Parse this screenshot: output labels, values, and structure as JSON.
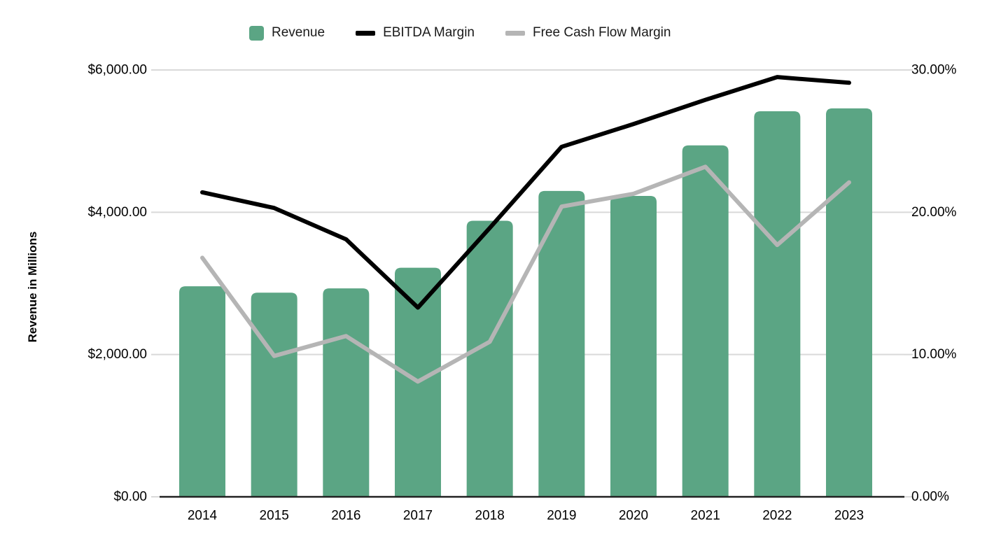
{
  "page": {
    "background": "#ffffff"
  },
  "legend": [
    {
      "label": "Revenue",
      "swatch": "square",
      "color": "#5ba584"
    },
    {
      "label": "EBITDA Margin",
      "swatch": "line",
      "color": "#000000"
    },
    {
      "label": "Free Cash Flow Margin",
      "swatch": "line",
      "color": "#b5b5b5"
    }
  ],
  "axes": {
    "left": {
      "title": "Revenue in Millions",
      "tick_labels": [
        "$6,000.00",
        "$4,000.00",
        "$2,000.00",
        "$0.00"
      ],
      "tick_values": [
        6000,
        4000,
        2000,
        0
      ]
    },
    "right": {
      "tick_labels": [
        "30.00%",
        "20.00%",
        "10.00%",
        "0.00%"
      ],
      "tick_values": [
        30,
        20,
        10,
        0
      ]
    },
    "x": {
      "labels": [
        "2014",
        "2015",
        "2016",
        "2017",
        "2018",
        "2019",
        "2020",
        "2021",
        "2022",
        "2023"
      ]
    }
  },
  "colors": {
    "bar": "#5ba584",
    "ebitda_line": "#000000",
    "fcf_line": "#b5b5b5",
    "gridline": "#d9d9d9",
    "axis_line": "#212121",
    "text": "#000000"
  },
  "chart_data": {
    "type": "combo-bar-line",
    "title": "",
    "categories": [
      "2014",
      "2015",
      "2016",
      "2017",
      "2018",
      "2019",
      "2020",
      "2021",
      "2022",
      "2023"
    ],
    "series": [
      {
        "name": "Revenue",
        "type": "bar",
        "axis": "left",
        "unit": "$ millions",
        "color": "#5ba584",
        "values": [
          2960,
          2870,
          2930,
          3220,
          3880,
          4300,
          4230,
          4940,
          5420,
          5460
        ]
      },
      {
        "name": "EBITDA Margin",
        "type": "line",
        "axis": "right",
        "unit": "%",
        "color": "#000000",
        "values": [
          21.4,
          20.3,
          18.1,
          13.3,
          18.9,
          24.6,
          26.2,
          27.9,
          29.5,
          29.1
        ]
      },
      {
        "name": "Free Cash Flow Margin",
        "type": "line",
        "axis": "right",
        "unit": "%",
        "color": "#b5b5b5",
        "values": [
          16.8,
          9.9,
          11.3,
          8.1,
          10.9,
          20.4,
          21.3,
          23.2,
          17.7,
          22.1
        ]
      }
    ],
    "ylabel_left": "Revenue in Millions",
    "ylim_left": [
      0,
      6000
    ],
    "ylim_right": [
      0,
      30
    ],
    "grid": true,
    "legend_position": "top"
  }
}
